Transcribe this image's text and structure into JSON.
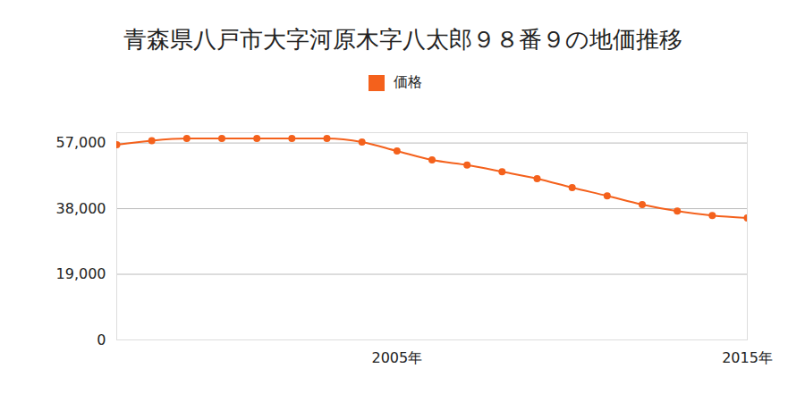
{
  "chart_data": {
    "type": "line",
    "title": "青森県八戸市大字河原木字八太郎９８番９の地価推移",
    "x": [
      1997,
      1998,
      1999,
      2000,
      2001,
      2002,
      2003,
      2004,
      2005,
      2006,
      2007,
      2008,
      2009,
      2010,
      2011,
      2012,
      2013,
      2014,
      2015
    ],
    "series": [
      {
        "name": "価格",
        "color": "#f4611c",
        "marker": "circle",
        "values": [
          56500,
          57700,
          58300,
          58300,
          58300,
          58300,
          58300,
          57300,
          54700,
          52100,
          50600,
          48700,
          46700,
          44100,
          41700,
          39200,
          37300,
          36000,
          35300
        ]
      }
    ],
    "xlim": [
      1997,
      2015
    ],
    "xticks": [
      {
        "value": 2005,
        "label": "2005年"
      },
      {
        "value": 2015,
        "label": "2015年"
      }
    ],
    "ylim": [
      0,
      60000
    ],
    "yticks": [
      0,
      {
        "value": 19000,
        "label": "19,000"
      },
      {
        "value": 38000,
        "label": "38,000"
      },
      {
        "value": 57000,
        "label": "57,000"
      }
    ],
    "grid": true,
    "legend": "top"
  }
}
